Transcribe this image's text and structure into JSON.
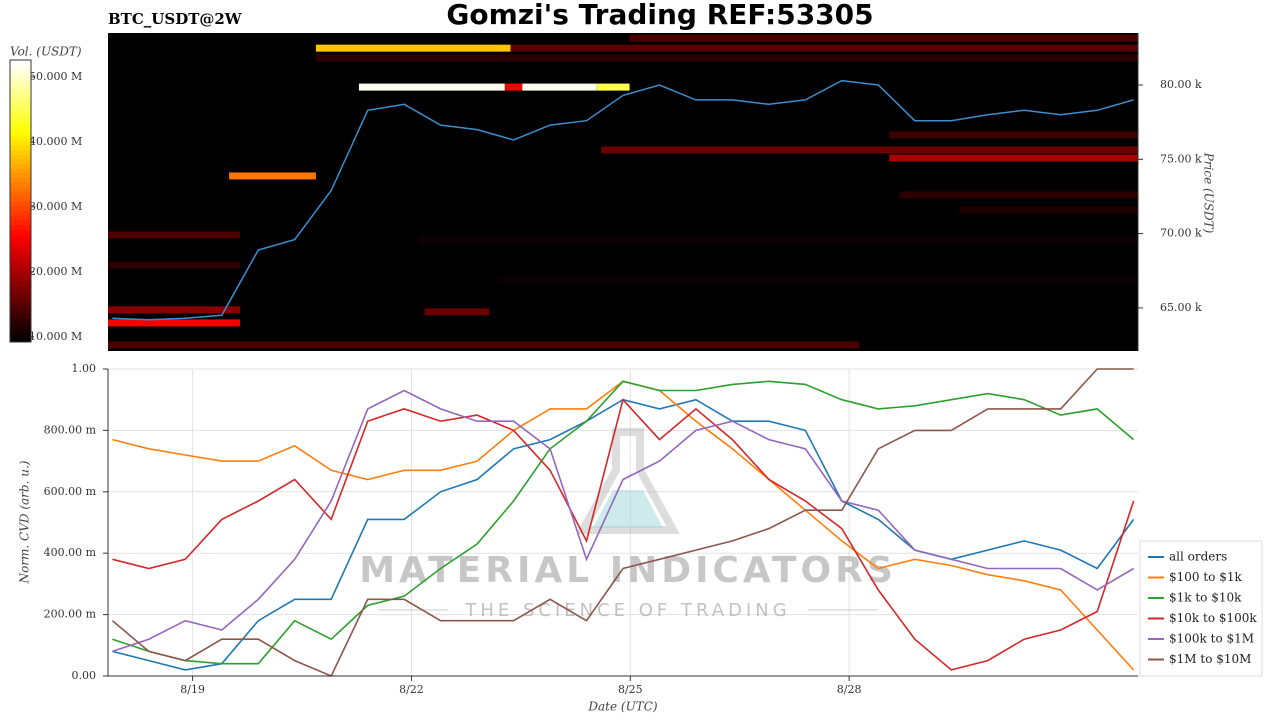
{
  "chart_data": [
    {
      "type": "heatmap",
      "title": "Gomzi's Trading REF:53305",
      "subtitle": "BTC_USDT@2W",
      "colorbar_label": "Vol. (USDT)",
      "ylabel": "Price (USDT)",
      "clim": [
        9200000,
        52600000
      ],
      "cticks": [
        {
          "value": 10000000,
          "label": "10.000 M"
        },
        {
          "value": 20000000,
          "label": "20.000 M"
        },
        {
          "value": 30000000,
          "label": "30.000 M"
        },
        {
          "value": 40000000,
          "label": "40.000 M"
        },
        {
          "value": 50000000,
          "label": "50.000 M"
        }
      ],
      "xlim": [
        17.84,
        31.96
      ],
      "ylim": [
        62100,
        83500
      ],
      "yticks": [
        {
          "value": 65000,
          "label": "65.00 k"
        },
        {
          "value": 70000,
          "label": "70.00 k"
        },
        {
          "value": 75000,
          "label": "75.00 k"
        },
        {
          "value": 80000,
          "label": "80.00 k"
        }
      ],
      "levels": [
        {
          "price": 82480,
          "x": [
            20.69,
            23.36
          ],
          "volume": 38000000
        },
        {
          "price": 82480,
          "x": [
            23.36,
            31.96
          ],
          "volume": 15000000
        },
        {
          "price": 79860,
          "x": [
            21.28,
            23.28
          ],
          "volume": 52000000
        },
        {
          "price": 79860,
          "x": [
            23.28,
            23.52
          ],
          "volume": 25000000
        },
        {
          "price": 79860,
          "x": [
            23.52,
            24.54
          ],
          "volume": 52000000
        },
        {
          "price": 79860,
          "x": [
            24.54,
            24.99
          ],
          "volume": 45000000
        },
        {
          "price": 73880,
          "x": [
            19.5,
            20.69
          ],
          "volume": 33000000
        },
        {
          "price": 83160,
          "x": [
            24.99,
            31.96
          ],
          "volume": 14000000
        },
        {
          "price": 81820,
          "x": [
            20.69,
            31.96
          ],
          "volume": 12000000
        },
        {
          "price": 75630,
          "x": [
            24.6,
            31.96
          ],
          "volume": 16000000
        },
        {
          "price": 75090,
          "x": [
            28.55,
            31.96
          ],
          "volume": 20000000
        },
        {
          "price": 76640,
          "x": [
            28.55,
            31.96
          ],
          "volume": 13000000
        },
        {
          "price": 69910,
          "x": [
            17.84,
            19.65
          ],
          "volume": 14000000
        },
        {
          "price": 67890,
          "x": [
            17.84,
            19.65
          ],
          "volume": 12000000
        },
        {
          "price": 64870,
          "x": [
            17.84,
            19.65
          ],
          "volume": 18000000
        },
        {
          "price": 63990,
          "x": [
            17.84,
            19.65
          ],
          "volume": 25000000
        },
        {
          "price": 62510,
          "x": [
            17.84,
            28.14
          ],
          "volume": 14000000
        },
        {
          "price": 64730,
          "x": [
            22.18,
            23.07
          ],
          "volume": 16000000
        },
        {
          "price": 72600,
          "x": [
            28.69,
            31.96
          ],
          "volume": 12000000
        },
        {
          "price": 71590,
          "x": [
            29.51,
            31.96
          ],
          "volume": 11000000
        },
        {
          "price": 69570,
          "x": [
            22.11,
            31.96
          ],
          "volume": 10000000
        },
        {
          "price": 66880,
          "x": [
            23.2,
            31.96
          ],
          "volume": 10000000
        }
      ],
      "x": [
        17.9,
        18.4,
        18.9,
        19.4,
        19.9,
        20.4,
        20.9,
        21.4,
        21.9,
        22.4,
        22.9,
        23.4,
        23.9,
        24.4,
        24.9,
        25.4,
        25.9,
        26.4,
        26.9,
        27.4,
        27.9,
        28.4,
        28.9,
        29.4,
        29.9,
        30.4,
        30.9,
        31.4,
        31.9
      ],
      "price_line": {
        "color": "#3b8ed0",
        "values": [
          64300,
          64200,
          64300,
          64500,
          68900,
          69600,
          72900,
          78300,
          78700,
          77300,
          77000,
          76300,
          77300,
          77600,
          79300,
          80000,
          79000,
          79000,
          78700,
          79000,
          80300,
          80000,
          77600,
          77600,
          78000,
          78300,
          78000,
          78300,
          79000
        ]
      }
    },
    {
      "type": "line",
      "ylabel": "Norm. CVD (arb. u.)",
      "xlabel": "Date (UTC)",
      "grid": true,
      "legend": "lower right",
      "watermark": [
        "MATERIAL INDICATORS",
        "THE SCIENCE OF TRADING"
      ],
      "xlim": [
        17.84,
        31.96
      ],
      "xticks": [
        {
          "value": 19,
          "label": "8/19"
        },
        {
          "value": 22,
          "label": "8/22"
        },
        {
          "value": 25,
          "label": "8/25"
        },
        {
          "value": 28,
          "label": "8/28"
        }
      ],
      "ylim": [
        0,
        1
      ],
      "yticks": [
        {
          "value": 0,
          "label": "0.00"
        },
        {
          "value": 0.2,
          "label": "200.00 m"
        },
        {
          "value": 0.4,
          "label": "400.00 m"
        },
        {
          "value": 0.6,
          "label": "600.00 m"
        },
        {
          "value": 0.8,
          "label": "800.00 m"
        },
        {
          "value": 1,
          "label": "1.00"
        }
      ],
      "x": [
        17.9,
        18.4,
        18.9,
        19.4,
        19.9,
        20.4,
        20.9,
        21.4,
        21.9,
        22.4,
        22.9,
        23.4,
        23.9,
        24.4,
        24.9,
        25.4,
        25.9,
        26.4,
        26.9,
        27.4,
        27.9,
        28.4,
        28.9,
        29.4,
        29.9,
        30.4,
        30.9,
        31.4,
        31.9
      ],
      "series": [
        {
          "name": "all orders",
          "color": "#1f77b4",
          "values": [
            0.08,
            0.05,
            0.02,
            0.04,
            0.18,
            0.25,
            0.25,
            0.51,
            0.51,
            0.6,
            0.64,
            0.74,
            0.77,
            0.83,
            0.9,
            0.87,
            0.9,
            0.83,
            0.83,
            0.8,
            0.57,
            0.51,
            0.41,
            0.38,
            0.41,
            0.44,
            0.41,
            0.35,
            0.51
          ]
        },
        {
          "name": "$100 to $1k",
          "color": "#ff7f0e",
          "values": [
            0.77,
            0.74,
            0.72,
            0.7,
            0.7,
            0.75,
            0.67,
            0.64,
            0.67,
            0.67,
            0.7,
            0.8,
            0.87,
            0.87,
            0.96,
            0.93,
            0.83,
            0.74,
            0.64,
            0.54,
            0.44,
            0.35,
            0.38,
            0.36,
            0.33,
            0.31,
            0.28,
            0.15,
            0.02
          ]
        },
        {
          "name": "$1k to $10k",
          "color": "#2ca02c",
          "values": [
            0.12,
            0.08,
            0.05,
            0.04,
            0.04,
            0.18,
            0.12,
            0.23,
            0.26,
            0.35,
            0.43,
            0.57,
            0.74,
            0.83,
            0.96,
            0.93,
            0.93,
            0.95,
            0.96,
            0.95,
            0.9,
            0.87,
            0.88,
            0.9,
            0.92,
            0.9,
            0.85,
            0.87,
            0.77
          ]
        },
        {
          "name": "$10k to $100k",
          "color": "#d62728",
          "values": [
            0.38,
            0.35,
            0.38,
            0.51,
            0.57,
            0.64,
            0.51,
            0.83,
            0.87,
            0.83,
            0.85,
            0.8,
            0.67,
            0.44,
            0.9,
            0.77,
            0.87,
            0.77,
            0.64,
            0.57,
            0.48,
            0.28,
            0.12,
            0.02,
            0.05,
            0.12,
            0.15,
            0.21,
            0.57
          ]
        },
        {
          "name": "$100k to $1M",
          "color": "#9467bd",
          "values": [
            0.08,
            0.12,
            0.18,
            0.15,
            0.25,
            0.38,
            0.57,
            0.87,
            0.93,
            0.87,
            0.83,
            0.83,
            0.74,
            0.38,
            0.64,
            0.7,
            0.8,
            0.83,
            0.77,
            0.74,
            0.57,
            0.54,
            0.41,
            0.38,
            0.35,
            0.35,
            0.35,
            0.28,
            0.35
          ]
        },
        {
          "name": "$1M to $10M",
          "color": "#8c564b",
          "values": [
            0.18,
            0.08,
            0.05,
            0.12,
            0.12,
            0.05,
            0,
            0.25,
            0.25,
            0.18,
            0.18,
            0.18,
            0.25,
            0.18,
            0.35,
            0.38,
            0.41,
            0.44,
            0.48,
            0.54,
            0.54,
            0.74,
            0.8,
            0.8,
            0.87,
            0.87,
            0.87,
            1,
            1
          ]
        }
      ]
    }
  ]
}
